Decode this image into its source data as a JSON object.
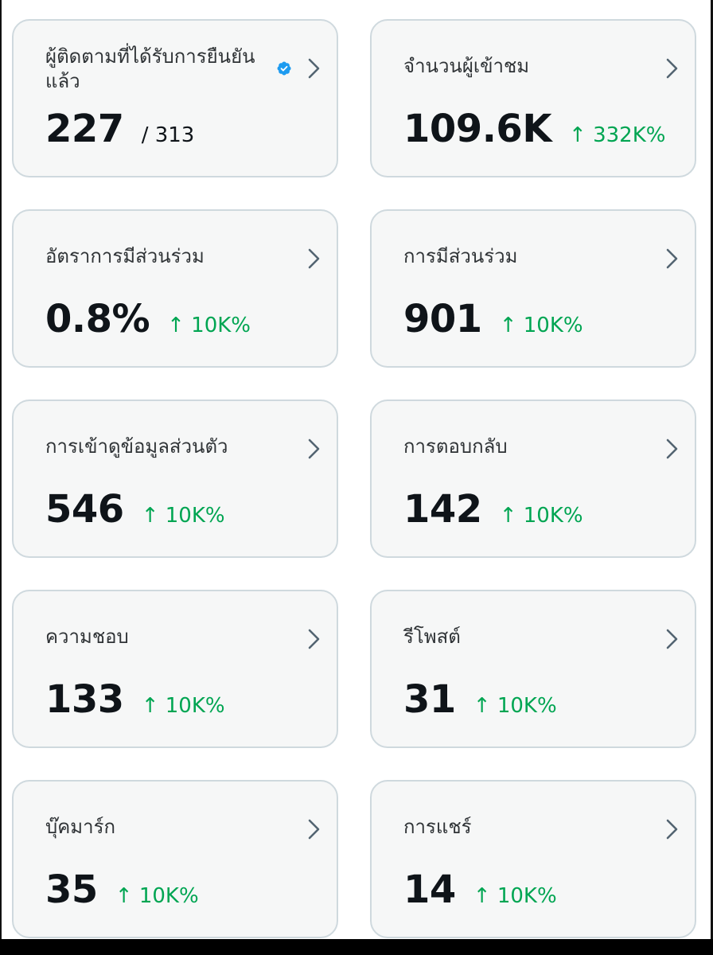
{
  "colors": {
    "card_background": "#f6f7f7",
    "card_border": "#cfd9de",
    "positive_change": "#00a552",
    "verified_badge": "#1d9bf0",
    "chevron": "#536471"
  },
  "cards": [
    {
      "title": "ผู้ติดตามที่ได้รับการยืนยันแล้ว",
      "value": "227",
      "denominator": "/ 313",
      "icon": "verified-badge-icon"
    },
    {
      "title": "จำนวนผู้เข้าชม",
      "value": "109.6K",
      "change": "↑ 332K%"
    },
    {
      "title": "อัตราการมีส่วนร่วม",
      "value": "0.8%",
      "change": "↑ 10K%"
    },
    {
      "title": "การมีส่วนร่วม",
      "value": "901",
      "change": "↑ 10K%"
    },
    {
      "title": "การเข้าดูข้อมูลส่วนตัว",
      "value": "546",
      "change": "↑ 10K%"
    },
    {
      "title": "การตอบกลับ",
      "value": "142",
      "change": "↑ 10K%"
    },
    {
      "title": "ความชอบ",
      "value": "133",
      "change": "↑ 10K%"
    },
    {
      "title": "รีโพสต์",
      "value": "31",
      "change": "↑ 10K%"
    },
    {
      "title": "บุ๊คมาร์ก",
      "value": "35",
      "change": "↑ 10K%"
    },
    {
      "title": "การแชร์",
      "value": "14",
      "change": "↑ 10K%"
    }
  ]
}
